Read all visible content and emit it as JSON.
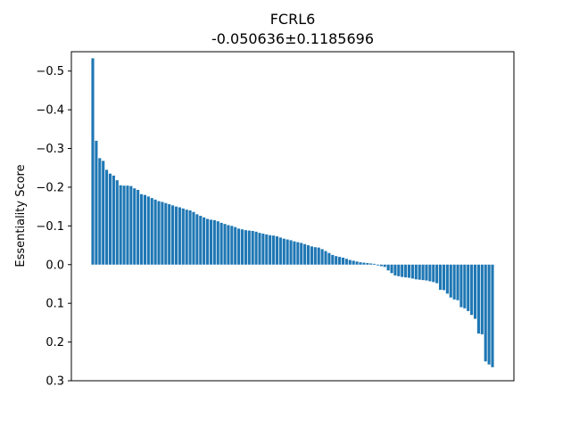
{
  "chart_data": {
    "type": "bar",
    "title": "FCRL6",
    "subtitle": "-0.050636±0.1185696",
    "xlabel": "",
    "ylabel": "Essentiality Score",
    "ylim": [
      0.3,
      -0.55
    ],
    "y_inverted": true,
    "yticks": [
      -0.5,
      -0.4,
      -0.3,
      -0.2,
      -0.1,
      0.0,
      0.1,
      0.2,
      0.3
    ],
    "ytick_labels": [
      "−0.5",
      "−0.4",
      "−0.3",
      "−0.2",
      "−0.1",
      "0.0",
      "0.1",
      "0.2",
      "0.3"
    ],
    "grid": false,
    "bar_color": "#1f77b4",
    "values": [
      -0.533,
      -0.32,
      -0.275,
      -0.268,
      -0.245,
      -0.235,
      -0.23,
      -0.218,
      -0.205,
      -0.204,
      -0.204,
      -0.203,
      -0.197,
      -0.193,
      -0.182,
      -0.18,
      -0.176,
      -0.172,
      -0.168,
      -0.164,
      -0.162,
      -0.159,
      -0.156,
      -0.153,
      -0.15,
      -0.148,
      -0.145,
      -0.142,
      -0.14,
      -0.136,
      -0.13,
      -0.126,
      -0.122,
      -0.118,
      -0.116,
      -0.115,
      -0.112,
      -0.108,
      -0.105,
      -0.102,
      -0.1,
      -0.097,
      -0.093,
      -0.091,
      -0.089,
      -0.088,
      -0.087,
      -0.085,
      -0.082,
      -0.08,
      -0.078,
      -0.076,
      -0.075,
      -0.073,
      -0.07,
      -0.067,
      -0.065,
      -0.063,
      -0.06,
      -0.058,
      -0.056,
      -0.053,
      -0.05,
      -0.047,
      -0.045,
      -0.044,
      -0.04,
      -0.035,
      -0.03,
      -0.025,
      -0.022,
      -0.02,
      -0.018,
      -0.015,
      -0.012,
      -0.01,
      -0.008,
      -0.006,
      -0.005,
      -0.004,
      -0.003,
      -0.002,
      0.002,
      0.004,
      0.006,
      0.015,
      0.022,
      0.028,
      0.03,
      0.032,
      0.033,
      0.034,
      0.036,
      0.038,
      0.039,
      0.04,
      0.041,
      0.043,
      0.045,
      0.048,
      0.065,
      0.066,
      0.075,
      0.085,
      0.09,
      0.092,
      0.11,
      0.113,
      0.12,
      0.13,
      0.14,
      0.178,
      0.18,
      0.25,
      0.258,
      0.265
    ]
  }
}
